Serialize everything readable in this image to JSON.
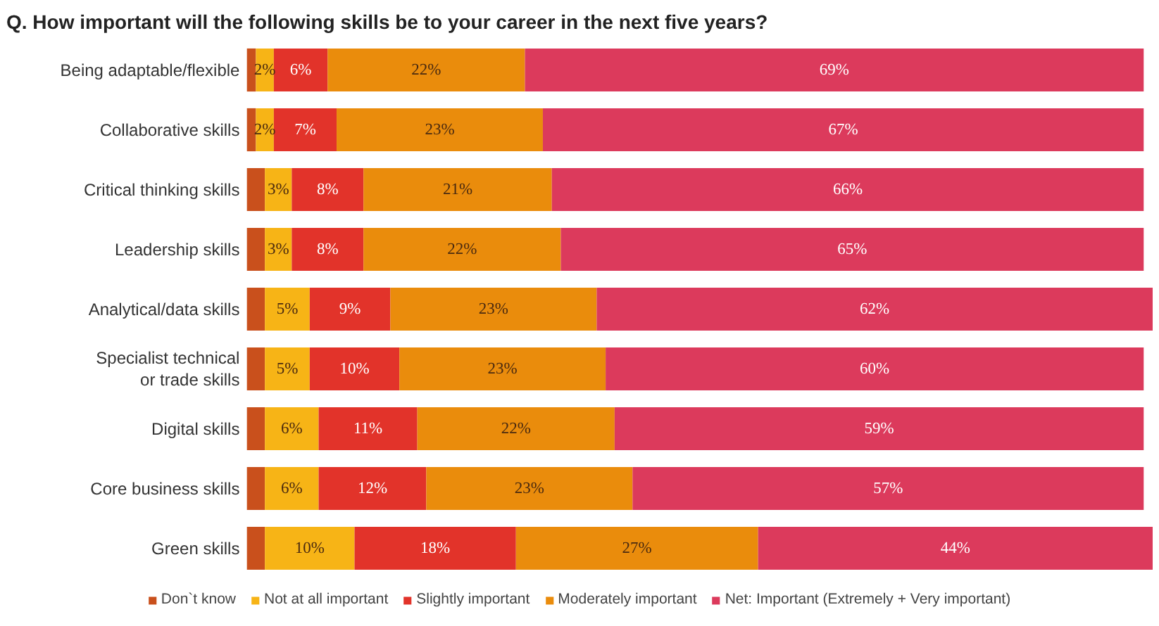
{
  "chart_data": {
    "type": "bar",
    "orientation": "horizontal",
    "stacked": true,
    "title": "Q. How important will the following skills be to your career in the next five years?",
    "categories": [
      "Being adaptable/flexible",
      "Collaborative skills",
      "Critical thinking skills",
      "Leadership skills",
      "Analytical/data skills",
      "Specialist technical\nor trade skills",
      "Digital skills",
      "Core business skills",
      "Green skills"
    ],
    "series": [
      {
        "name": "Don`t know",
        "color": "#c9501c",
        "values": [
          1,
          1,
          2,
          2,
          2,
          2,
          2,
          2,
          2
        ],
        "value_labels": [
          null,
          null,
          null,
          null,
          null,
          null,
          null,
          null,
          null
        ]
      },
      {
        "name": "Not at all important",
        "color": "#f7b416",
        "values": [
          2,
          2,
          3,
          3,
          5,
          5,
          6,
          6,
          10
        ],
        "value_labels": [
          "2%",
          "2%",
          "3%",
          "3%",
          "5%",
          "5%",
          "6%",
          "6%",
          "10%"
        ]
      },
      {
        "name": "Slightly important",
        "color": "#e2332a",
        "values": [
          6,
          7,
          8,
          8,
          9,
          10,
          11,
          12,
          18
        ],
        "value_labels": [
          "6%",
          "7%",
          "8%",
          "8%",
          "9%",
          "10%",
          "11%",
          "12%",
          "18%"
        ]
      },
      {
        "name": "Moderately important",
        "color": "#ea8c0c",
        "values": [
          22,
          23,
          21,
          22,
          23,
          23,
          22,
          23,
          27
        ],
        "value_labels": [
          "22%",
          "23%",
          "21%",
          "22%",
          "23%",
          "23%",
          "22%",
          "23%",
          "27%"
        ]
      },
      {
        "name": "Net: Important (Extremely + Very important)",
        "color": "#dc3a5c",
        "values": [
          69,
          67,
          66,
          65,
          62,
          60,
          59,
          57,
          44
        ],
        "value_labels": [
          "69%",
          "67%",
          "66%",
          "65%",
          "62%",
          "60%",
          "59%",
          "57%",
          "44%"
        ]
      }
    ],
    "legend": "bottom",
    "grid": false
  }
}
